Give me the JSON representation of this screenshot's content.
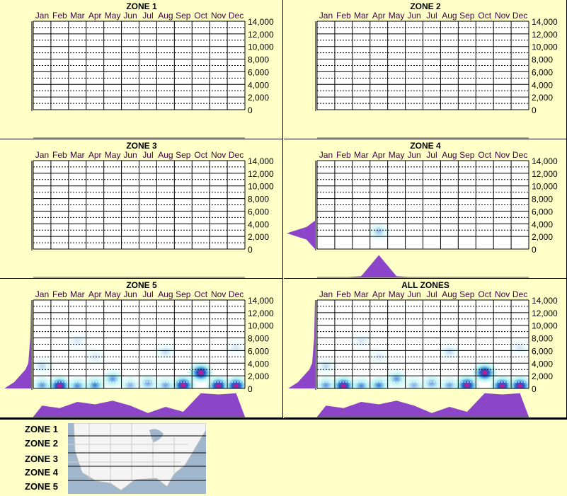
{
  "chart_data": {
    "type": "heatmap",
    "months": [
      "Jan",
      "Feb",
      "Mar",
      "Apr",
      "May",
      "Jun",
      "Jul",
      "Aug",
      "Sep",
      "Oct",
      "Nov",
      "Dec"
    ],
    "y_ticks": [
      "14,000",
      "12,000",
      "10,000",
      "8,000",
      "6,000",
      "4,000",
      "2,000",
      "0"
    ],
    "ylim": [
      0,
      14000
    ],
    "grid": true,
    "panels": [
      {
        "title": "ZONE 1",
        "spots": [],
        "profile": [],
        "side": []
      },
      {
        "title": "ZONE 2",
        "spots": [],
        "profile": [],
        "side": []
      },
      {
        "title": "ZONE 3",
        "spots": [],
        "profile": [],
        "side": []
      },
      {
        "title": "ZONE 4",
        "spots": [
          [
            3.5,
            2800,
            0.5
          ]
        ],
        "profile": [
          0,
          0,
          0.05,
          0.9,
          0.05,
          0,
          0,
          0,
          0,
          0,
          0,
          0
        ],
        "side": [
          [
            0,
            0
          ],
          [
            1500,
            0.3
          ],
          [
            2500,
            1
          ],
          [
            3500,
            0.3
          ],
          [
            4500,
            0
          ]
        ]
      },
      {
        "title": "ZONE 5",
        "spots": [
          [
            0.5,
            500,
            0.8
          ],
          [
            1.5,
            400,
            1.3
          ],
          [
            2.5,
            400,
            0.9
          ],
          [
            3.5,
            500,
            1
          ],
          [
            4.5,
            1500,
            0.8
          ],
          [
            6.5,
            800,
            0.7
          ],
          [
            8.5,
            500,
            1.4
          ],
          [
            9.5,
            2500,
            1.1
          ],
          [
            10.5,
            400,
            1.5
          ],
          [
            11.5,
            400,
            1.6
          ],
          [
            0.5,
            3500,
            0.3
          ],
          [
            2.5,
            7500,
            0.2
          ],
          [
            3.5,
            5000,
            0.2
          ],
          [
            7.5,
            5800,
            0.3
          ],
          [
            11.5,
            6500,
            0.2
          ],
          [
            5.5,
            500,
            0.6
          ],
          [
            7.5,
            500,
            0.7
          ]
        ],
        "profile": [
          0.45,
          0.35,
          0.6,
          0.5,
          0.65,
          0.45,
          0.15,
          0.4,
          0.2,
          0.95,
          0.9,
          0.95
        ],
        "side": [
          [
            0,
            0.95
          ],
          [
            1000,
            0.6
          ],
          [
            2000,
            0.4
          ],
          [
            3000,
            0.2
          ],
          [
            4000,
            0.1
          ],
          [
            8000,
            0.03
          ],
          [
            14000,
            0
          ]
        ]
      },
      {
        "title": "ALL ZONES",
        "spots": [
          [
            0.5,
            500,
            0.8
          ],
          [
            1.5,
            400,
            1.3
          ],
          [
            2.5,
            400,
            0.9
          ],
          [
            3.5,
            500,
            1
          ],
          [
            4.5,
            1500,
            0.8
          ],
          [
            6.5,
            800,
            0.7
          ],
          [
            8.5,
            500,
            1.4
          ],
          [
            9.5,
            2500,
            1.1
          ],
          [
            10.5,
            400,
            1.5
          ],
          [
            11.5,
            400,
            1.6
          ],
          [
            0.5,
            3500,
            0.3
          ],
          [
            2.5,
            7500,
            0.2
          ],
          [
            3.5,
            5000,
            0.2
          ],
          [
            7.5,
            5800,
            0.3
          ],
          [
            11.5,
            6500,
            0.2
          ],
          [
            5.5,
            500,
            0.6
          ],
          [
            7.5,
            500,
            0.7
          ]
        ],
        "profile": [
          0.45,
          0.35,
          0.6,
          0.5,
          0.65,
          0.45,
          0.15,
          0.4,
          0.2,
          0.95,
          0.9,
          0.95
        ],
        "side": [
          [
            0,
            0.95
          ],
          [
            1000,
            0.6
          ],
          [
            2000,
            0.4
          ],
          [
            3000,
            0.2
          ],
          [
            4000,
            0.1
          ],
          [
            8000,
            0.03
          ],
          [
            14000,
            0
          ]
        ]
      }
    ],
    "colors": {
      "fill": "#8c44c8",
      "low": "#a0f0f0",
      "mid": "#1060d0",
      "high": "#ff0080",
      "bg": "#ffffc8"
    }
  },
  "legend": {
    "zones": [
      "ZONE 1",
      "ZONE 2",
      "ZONE 3",
      "ZONE 4",
      "ZONE 5"
    ]
  }
}
